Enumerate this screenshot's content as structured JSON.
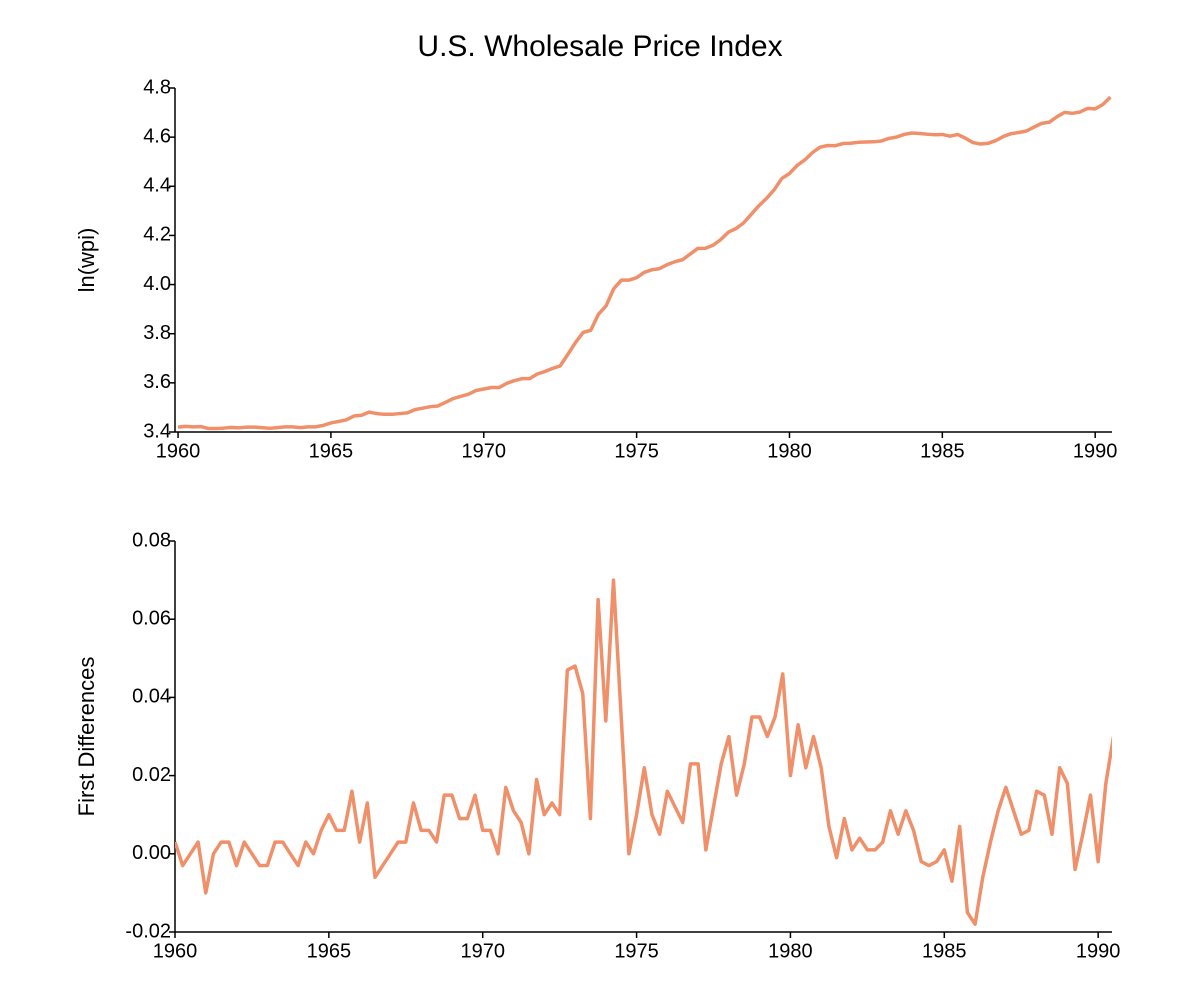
{
  "chart_data": [
    {
      "type": "line",
      "title": "U.S. Wholesale Price Index",
      "ylabel": "ln(wpi)",
      "color": "#f0906a",
      "x": [
        1960,
        1960.25,
        1960.5,
        1960.75,
        1961,
        1961.25,
        1961.5,
        1961.75,
        1962,
        1962.25,
        1962.5,
        1962.75,
        1963,
        1963.25,
        1963.5,
        1963.75,
        1964,
        1964.25,
        1964.5,
        1964.75,
        1965,
        1965.25,
        1965.5,
        1965.75,
        1966,
        1966.25,
        1966.5,
        1966.75,
        1967,
        1967.25,
        1967.5,
        1967.75,
        1968,
        1968.25,
        1968.5,
        1968.75,
        1969,
        1969.25,
        1969.5,
        1969.75,
        1970,
        1970.25,
        1970.5,
        1970.75,
        1971,
        1971.25,
        1971.5,
        1971.75,
        1972,
        1972.25,
        1972.5,
        1972.75,
        1973,
        1973.25,
        1973.5,
        1973.75,
        1974,
        1974.25,
        1974.5,
        1974.75,
        1975,
        1975.25,
        1975.5,
        1975.75,
        1976,
        1976.25,
        1976.5,
        1976.75,
        1977,
        1977.25,
        1977.5,
        1977.75,
        1978,
        1978.25,
        1978.5,
        1978.75,
        1979,
        1979.25,
        1979.5,
        1979.75,
        1980,
        1980.25,
        1980.5,
        1980.75,
        1981,
        1981.25,
        1981.5,
        1981.75,
        1982,
        1982.25,
        1982.5,
        1982.75,
        1983,
        1983.25,
        1983.5,
        1983.75,
        1984,
        1984.25,
        1984.5,
        1984.75,
        1985,
        1985.25,
        1985.5,
        1985.75,
        1986,
        1986.25,
        1986.5,
        1986.75,
        1987,
        1987.25,
        1987.5,
        1987.75,
        1988,
        1988.25,
        1988.5,
        1988.75,
        1989,
        1989.25,
        1989.5,
        1989.75,
        1990,
        1990.25,
        1990.5
      ],
      "values": [
        3.42,
        3.423,
        3.421,
        3.422,
        3.414,
        3.414,
        3.416,
        3.419,
        3.417,
        3.42,
        3.42,
        3.418,
        3.415,
        3.418,
        3.421,
        3.421,
        3.418,
        3.421,
        3.421,
        3.427,
        3.437,
        3.443,
        3.449,
        3.465,
        3.468,
        3.481,
        3.475,
        3.472,
        3.472,
        3.475,
        3.478,
        3.491,
        3.497,
        3.503,
        3.506,
        3.521,
        3.536,
        3.545,
        3.554,
        3.569,
        3.575,
        3.581,
        3.581,
        3.598,
        3.609,
        3.617,
        3.617,
        3.636,
        3.646,
        3.659,
        3.669,
        3.716,
        3.764,
        3.805,
        3.814,
        3.879,
        3.913,
        3.983,
        4.018,
        4.018,
        4.028,
        4.05,
        4.06,
        4.065,
        4.081,
        4.093,
        4.101,
        4.124,
        4.147,
        4.148,
        4.16,
        4.183,
        4.213,
        4.228,
        4.251,
        4.286,
        4.321,
        4.351,
        4.386,
        4.432,
        4.452,
        4.485,
        4.507,
        4.537,
        4.559,
        4.566,
        4.565,
        4.574,
        4.575,
        4.579,
        4.58,
        4.581,
        4.584,
        4.595,
        4.6,
        4.611,
        4.617,
        4.615,
        4.612,
        4.61,
        4.611,
        4.604,
        4.611,
        4.596,
        4.578,
        4.572,
        4.575,
        4.586,
        4.603,
        4.614,
        4.619,
        4.625,
        4.641,
        4.656,
        4.661,
        4.683,
        4.701,
        4.697,
        4.702,
        4.717,
        4.715,
        4.733,
        4.763
      ],
      "xlim": [
        1959.9,
        1990.55
      ],
      "xticks": [
        1960,
        1965,
        1970,
        1975,
        1980,
        1985,
        1990
      ],
      "ylim": [
        3.4,
        4.8
      ],
      "yticks": [
        3.4,
        3.6,
        3.8,
        {
          "value": 4,
          "label": "4.0"
        },
        4.2,
        4.4,
        4.6,
        4.8
      ]
    },
    {
      "type": "line",
      "ylabel": "First Differences",
      "color": "#f0906a",
      "x": [
        1960,
        1960.25,
        1960.5,
        1960.75,
        1961,
        1961.25,
        1961.5,
        1961.75,
        1962,
        1962.25,
        1962.5,
        1962.75,
        1963,
        1963.25,
        1963.5,
        1963.75,
        1964,
        1964.25,
        1964.5,
        1964.75,
        1965,
        1965.25,
        1965.5,
        1965.75,
        1966,
        1966.25,
        1966.5,
        1966.75,
        1967,
        1967.25,
        1967.5,
        1967.75,
        1968,
        1968.25,
        1968.5,
        1968.75,
        1969,
        1969.25,
        1969.5,
        1969.75,
        1970,
        1970.25,
        1970.5,
        1970.75,
        1971,
        1971.25,
        1971.5,
        1971.75,
        1972,
        1972.25,
        1972.5,
        1972.75,
        1973,
        1973.25,
        1973.5,
        1973.75,
        1974,
        1974.25,
        1974.5,
        1974.75,
        1975,
        1975.25,
        1975.5,
        1975.75,
        1976,
        1976.25,
        1976.5,
        1976.75,
        1977,
        1977.25,
        1977.5,
        1977.75,
        1978,
        1978.25,
        1978.5,
        1978.75,
        1979,
        1979.25,
        1979.5,
        1979.75,
        1980,
        1980.25,
        1980.5,
        1980.75,
        1981,
        1981.25,
        1981.5,
        1981.75,
        1982,
        1982.25,
        1982.5,
        1982.75,
        1983,
        1983.25,
        1983.5,
        1983.75,
        1984,
        1984.25,
        1984.5,
        1984.75,
        1985,
        1985.25,
        1985.5,
        1985.75,
        1986,
        1986.25,
        1986.5,
        1986.75,
        1987,
        1987.25,
        1987.5,
        1987.75,
        1988,
        1988.25,
        1988.5,
        1988.75,
        1989,
        1989.25,
        1989.5,
        1989.75,
        1990,
        1990.25,
        1990.5
      ],
      "values": [
        0.003,
        -0.003,
        0.0,
        0.003,
        -0.01,
        0.0,
        0.003,
        0.003,
        -0.003,
        0.003,
        0.0,
        -0.003,
        -0.003,
        0.003,
        0.003,
        0.0,
        -0.003,
        0.003,
        0.0,
        0.006,
        0.01,
        0.006,
        0.006,
        0.016,
        0.003,
        0.013,
        -0.006,
        -0.003,
        0.0,
        0.003,
        0.003,
        0.013,
        0.006,
        0.006,
        0.003,
        0.015,
        0.015,
        0.009,
        0.009,
        0.015,
        0.006,
        0.006,
        0.0,
        0.017,
        0.011,
        0.008,
        0.0,
        0.019,
        0.01,
        0.013,
        0.01,
        0.047,
        0.048,
        0.041,
        0.009,
        0.065,
        0.034,
        0.07,
        0.035,
        0.0,
        0.01,
        0.022,
        0.01,
        0.005,
        0.016,
        0.012,
        0.008,
        0.023,
        0.023,
        0.001,
        0.012,
        0.023,
        0.03,
        0.015,
        0.023,
        0.035,
        0.035,
        0.03,
        0.035,
        0.046,
        0.02,
        0.033,
        0.022,
        0.03,
        0.022,
        0.007,
        -0.001,
        0.009,
        0.001,
        0.004,
        0.001,
        0.001,
        0.003,
        0.011,
        0.005,
        0.011,
        0.006,
        -0.002,
        -0.003,
        -0.002,
        0.001,
        -0.007,
        0.007,
        -0.015,
        -0.018,
        -0.006,
        0.003,
        0.011,
        0.017,
        0.011,
        0.005,
        0.006,
        0.016,
        0.015,
        0.005,
        0.022,
        0.018,
        -0.004,
        0.005,
        0.015,
        -0.002,
        0.018,
        0.03
      ],
      "xlim": [
        1960,
        1990.45
      ],
      "xticks": [
        1960,
        1965,
        1970,
        1975,
        1980,
        1985,
        1990
      ],
      "ylim": [
        -0.02,
        0.08
      ],
      "yticks": [
        -0.02,
        {
          "value": 0,
          "label": "0.00"
        },
        0.02,
        0.04,
        0.06,
        0.08
      ]
    }
  ]
}
